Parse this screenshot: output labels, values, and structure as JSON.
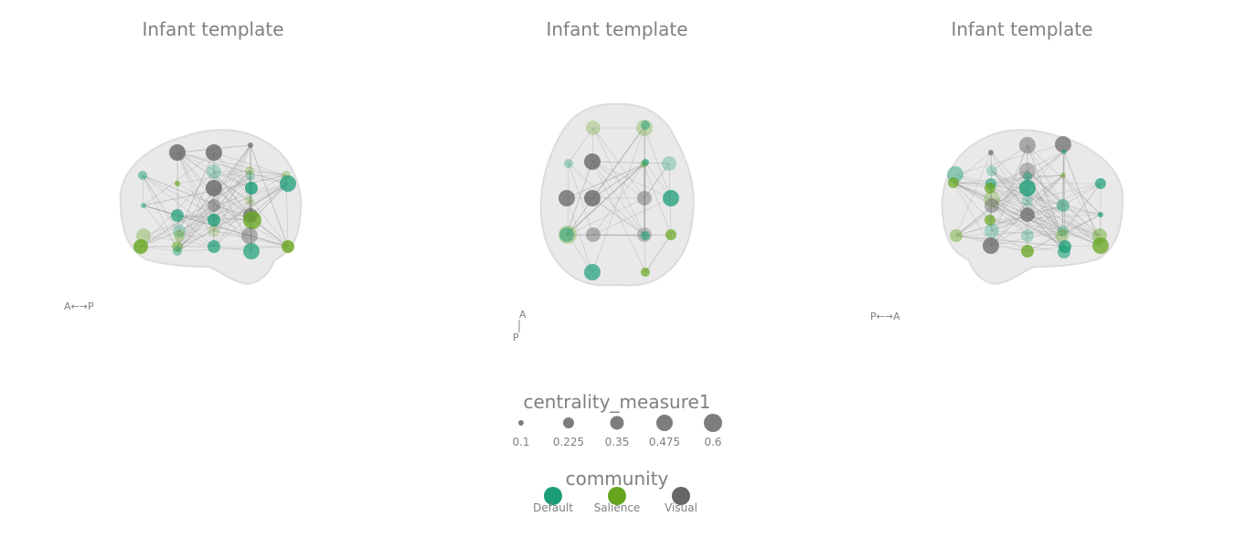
{
  "panels": [
    {
      "title": "Infant template",
      "orientation": "A←→P"
    },
    {
      "title": "Infant template",
      "orientation_top": "A",
      "orientation_bottom": "P"
    },
    {
      "title": "Infant template",
      "orientation": "P←→A"
    }
  ],
  "colors": {
    "Default": "#1b9e77",
    "Salience": "#66a61e",
    "Visual": "#666666",
    "brain": "#e6e6e6",
    "edge": "#9a9a9a"
  },
  "legend": {
    "size_title": "centrality_measure1",
    "size_values": [
      "0.1",
      "0.225",
      "0.35",
      "0.475",
      "0.6"
    ],
    "community_title": "community",
    "communities": [
      "Default",
      "Salience",
      "Visual"
    ]
  },
  "chart_data": {
    "type": "network",
    "communities": [
      "Default",
      "Salience",
      "Visual"
    ],
    "centrality_range": [
      0.1,
      0.6
    ]
  }
}
